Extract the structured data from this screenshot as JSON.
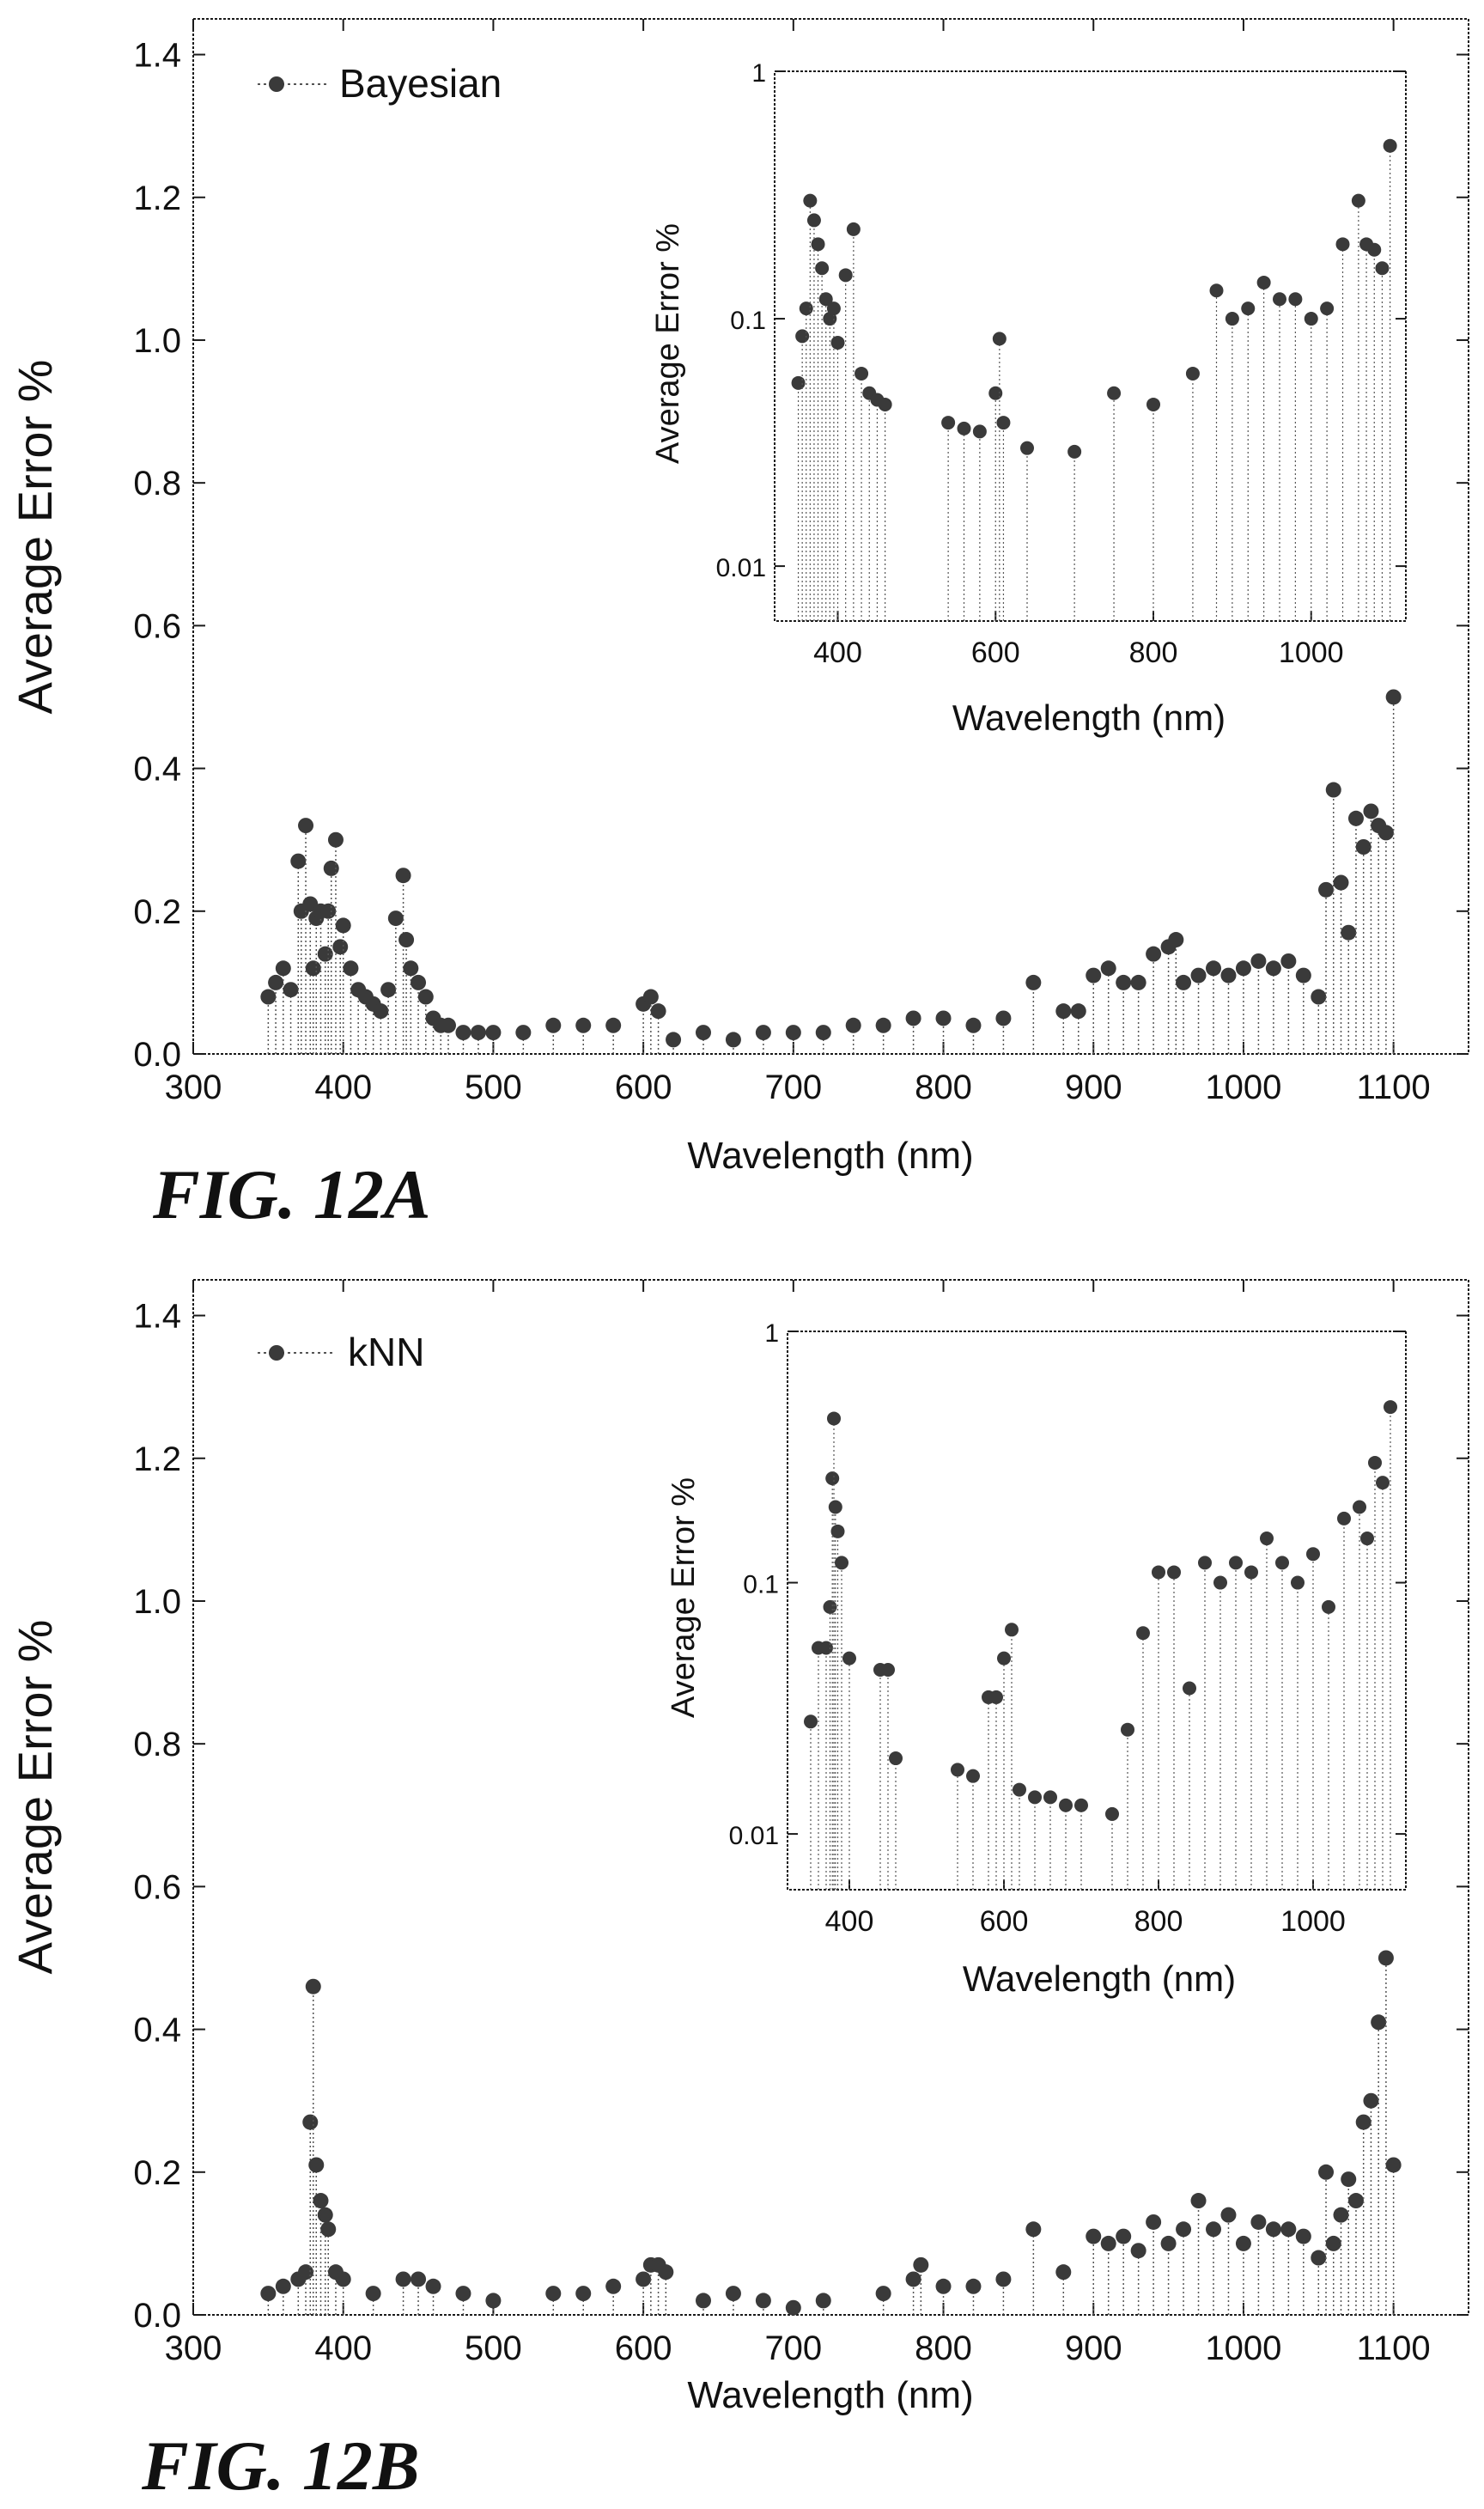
{
  "chart_data": [
    {
      "type": "scatter",
      "figure_label": "FIG. 12A",
      "xlabel": "Wavelength (nm)",
      "ylabel": "Average Error %",
      "xlim": [
        300,
        1150
      ],
      "ylim": [
        0.0,
        1.45
      ],
      "x_ticks": [
        "300",
        "400",
        "500",
        "600",
        "700",
        "800",
        "900",
        "1000",
        "1100"
      ],
      "y_ticks": [
        "0.0",
        "0.2",
        "0.4",
        "0.6",
        "0.8",
        "1.0",
        "1.2",
        "1.4"
      ],
      "legend": {
        "label": "Bayesian",
        "position": "top-left"
      },
      "series": [
        {
          "name": "Bayesian",
          "x": [
            350,
            355,
            360,
            365,
            370,
            372,
            375,
            378,
            380,
            382,
            385,
            388,
            390,
            392,
            395,
            398,
            400,
            405,
            410,
            415,
            420,
            425,
            430,
            435,
            440,
            442,
            445,
            450,
            455,
            460,
            465,
            470,
            480,
            490,
            500,
            520,
            540,
            560,
            580,
            600,
            605,
            610,
            620,
            640,
            660,
            680,
            700,
            720,
            740,
            760,
            780,
            800,
            820,
            840,
            860,
            880,
            890,
            900,
            910,
            920,
            930,
            940,
            950,
            955,
            960,
            970,
            980,
            990,
            1000,
            1010,
            1020,
            1030,
            1040,
            1050,
            1055,
            1060,
            1065,
            1070,
            1075,
            1080,
            1085,
            1090,
            1095,
            1100
          ],
          "y": [
            0.08,
            0.1,
            0.12,
            0.09,
            0.27,
            0.2,
            0.32,
            0.21,
            0.12,
            0.19,
            0.2,
            0.14,
            0.2,
            0.26,
            0.3,
            0.15,
            0.18,
            0.12,
            0.09,
            0.08,
            0.07,
            0.06,
            0.09,
            0.19,
            0.25,
            0.16,
            0.12,
            0.1,
            0.08,
            0.05,
            0.04,
            0.04,
            0.03,
            0.03,
            0.03,
            0.03,
            0.04,
            0.04,
            0.04,
            0.07,
            0.08,
            0.06,
            0.02,
            0.03,
            0.02,
            0.03,
            0.03,
            0.03,
            0.04,
            0.04,
            0.05,
            0.05,
            0.04,
            0.05,
            0.1,
            0.06,
            0.06,
            0.11,
            0.12,
            0.1,
            0.1,
            0.14,
            0.15,
            0.16,
            0.1,
            0.11,
            0.12,
            0.11,
            0.12,
            0.13,
            0.12,
            0.13,
            0.11,
            0.08,
            0.23,
            0.37,
            0.24,
            0.17,
            0.33,
            0.29,
            0.34,
            0.32,
            0.31,
            0.5
          ]
        }
      ],
      "inset": {
        "xlabel": "Wavelength (nm)",
        "ylabel": "Average Error %",
        "yscale": "log",
        "xlim": [
          320,
          1120
        ],
        "ylim": [
          0.006,
          1
        ],
        "x_ticks": [
          "400",
          "600",
          "800",
          "1000"
        ],
        "y_ticks": [
          "0.01",
          "0.1",
          "1"
        ],
        "series": [
          {
            "name": "Bayesian",
            "x": [
              350,
              355,
              360,
              365,
              370,
              375,
              380,
              385,
              390,
              395,
              400,
              410,
              420,
              430,
              440,
              450,
              460,
              540,
              560,
              580,
              600,
              605,
              610,
              640,
              700,
              750,
              800,
              850,
              880,
              900,
              920,
              940,
              960,
              980,
              1000,
              1020,
              1040,
              1060,
              1070,
              1080,
              1090,
              1100
            ],
            "y": [
              0.055,
              0.085,
              0.11,
              0.3,
              0.25,
              0.2,
              0.16,
              0.12,
              0.1,
              0.11,
              0.08,
              0.15,
              0.23,
              0.06,
              0.05,
              0.047,
              0.045,
              0.038,
              0.036,
              0.035,
              0.05,
              0.083,
              0.038,
              0.03,
              0.029,
              0.05,
              0.045,
              0.06,
              0.13,
              0.1,
              0.11,
              0.14,
              0.12,
              0.12,
              0.1,
              0.11,
              0.2,
              0.3,
              0.2,
              0.19,
              0.16,
              0.5
            ]
          }
        ]
      }
    },
    {
      "type": "scatter",
      "figure_label": "FIG. 12B",
      "xlabel": "Wavelength (nm)",
      "ylabel": "Average Error %",
      "xlim": [
        300,
        1150
      ],
      "ylim": [
        0.0,
        1.45
      ],
      "x_ticks": [
        "300",
        "400",
        "500",
        "600",
        "700",
        "800",
        "900",
        "1000",
        "1100"
      ],
      "y_ticks": [
        "0.0",
        "0.2",
        "0.4",
        "0.6",
        "0.8",
        "1.0",
        "1.2",
        "1.4"
      ],
      "legend": {
        "label": "kNN",
        "position": "top-left"
      },
      "series": [
        {
          "name": "kNN",
          "x": [
            350,
            360,
            370,
            375,
            378,
            380,
            382,
            385,
            388,
            390,
            395,
            400,
            420,
            440,
            450,
            460,
            480,
            500,
            540,
            560,
            580,
            600,
            605,
            610,
            615,
            640,
            660,
            680,
            700,
            720,
            760,
            780,
            785,
            800,
            820,
            840,
            860,
            880,
            900,
            910,
            920,
            930,
            940,
            950,
            960,
            970,
            980,
            990,
            1000,
            1010,
            1020,
            1030,
            1040,
            1050,
            1055,
            1060,
            1065,
            1070,
            1075,
            1080,
            1085,
            1090,
            1095,
            1100
          ],
          "y": [
            0.03,
            0.04,
            0.05,
            0.06,
            0.27,
            0.46,
            0.21,
            0.16,
            0.14,
            0.12,
            0.06,
            0.05,
            0.03,
            0.05,
            0.05,
            0.04,
            0.03,
            0.02,
            0.03,
            0.03,
            0.04,
            0.05,
            0.07,
            0.07,
            0.06,
            0.02,
            0.03,
            0.02,
            0.01,
            0.02,
            0.03,
            0.05,
            0.07,
            0.04,
            0.04,
            0.05,
            0.12,
            0.06,
            0.11,
            0.1,
            0.11,
            0.09,
            0.13,
            0.1,
            0.12,
            0.16,
            0.12,
            0.14,
            0.1,
            0.13,
            0.12,
            0.12,
            0.11,
            0.08,
            0.2,
            0.1,
            0.14,
            0.19,
            0.16,
            0.27,
            0.3,
            0.41,
            0.5,
            0.21
          ]
        }
      ],
      "inset": {
        "xlabel": "Wavelength (nm)",
        "ylabel": "Average Error %",
        "yscale": "log",
        "xlim": [
          320,
          1120
        ],
        "ylim": [
          0.006,
          1
        ],
        "x_ticks": [
          "400",
          "600",
          "800",
          "1000"
        ],
        "y_ticks": [
          "0.01",
          "0.1",
          "1"
        ],
        "series": [
          {
            "name": "kNN",
            "x": [
              350,
              360,
              370,
              375,
              378,
              380,
              382,
              385,
              390,
              400,
              440,
              450,
              460,
              540,
              560,
              580,
              590,
              600,
              610,
              620,
              640,
              660,
              680,
              700,
              740,
              760,
              780,
              800,
              820,
              840,
              860,
              880,
              900,
              920,
              940,
              960,
              980,
              1000,
              1020,
              1040,
              1060,
              1070,
              1080,
              1090,
              1100
            ],
            "y": [
              0.028,
              0.055,
              0.055,
              0.08,
              0.26,
              0.45,
              0.2,
              0.16,
              0.12,
              0.05,
              0.045,
              0.045,
              0.02,
              0.018,
              0.017,
              0.035,
              0.035,
              0.05,
              0.065,
              0.015,
              0.014,
              0.014,
              0.013,
              0.013,
              0.012,
              0.026,
              0.063,
              0.11,
              0.11,
              0.038,
              0.12,
              0.1,
              0.12,
              0.11,
              0.15,
              0.12,
              0.1,
              0.13,
              0.08,
              0.18,
              0.2,
              0.15,
              0.3,
              0.25,
              0.5
            ]
          }
        ]
      }
    }
  ],
  "colors": {
    "marker": "#3a3a3a",
    "frame": "#1a1a1a",
    "dotted_line": "#555555"
  }
}
